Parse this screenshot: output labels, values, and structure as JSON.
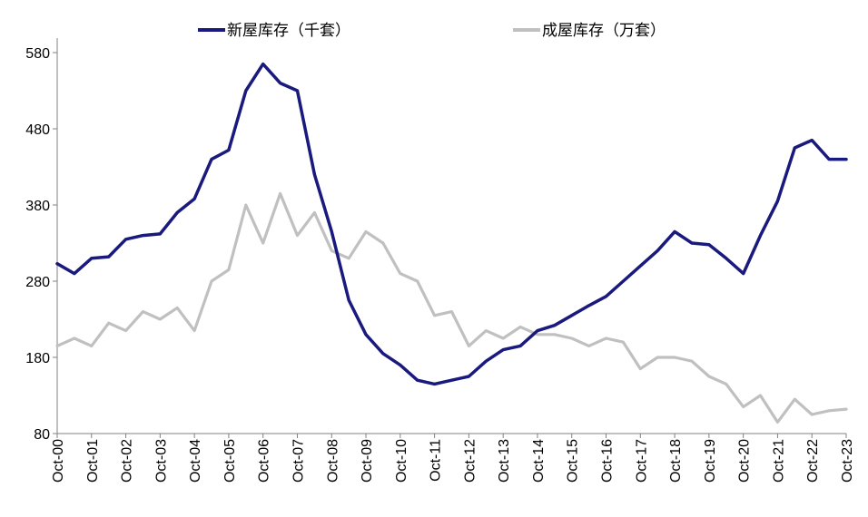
{
  "chart_data": {
    "type": "line",
    "title": "",
    "xlabel": "",
    "ylabel": "",
    "ylim": [
      80,
      580
    ],
    "yticks": [
      80,
      180,
      280,
      380,
      480,
      580
    ],
    "x_start": "Oct-00",
    "x_end": "Oct-23",
    "xticks": [
      "Oct-00",
      "Oct-01",
      "Oct-02",
      "Oct-03",
      "Oct-04",
      "Oct-05",
      "Oct-06",
      "Oct-07",
      "Oct-08",
      "Oct-09",
      "Oct-10",
      "Oct-11",
      "Oct-12",
      "Oct-13",
      "Oct-14",
      "Oct-15",
      "Oct-16",
      "Oct-17",
      "Oct-18",
      "Oct-19",
      "Oct-20",
      "Oct-21",
      "Oct-22",
      "Oct-23"
    ],
    "grid": false,
    "legend_position": "top",
    "series": [
      {
        "name": "新屋库存（千套）",
        "color": "#1a1a7e",
        "x": [
          "Oct-00",
          "Apr-01",
          "Oct-01",
          "Apr-02",
          "Oct-02",
          "Apr-03",
          "Oct-03",
          "Apr-04",
          "Oct-04",
          "Apr-05",
          "Oct-05",
          "Apr-06",
          "Oct-06",
          "Apr-07",
          "Oct-07",
          "Apr-08",
          "Oct-08",
          "Apr-09",
          "Oct-09",
          "Apr-10",
          "Oct-10",
          "Apr-11",
          "Oct-11",
          "Apr-12",
          "Oct-12",
          "Apr-13",
          "Oct-13",
          "Apr-14",
          "Oct-14",
          "Apr-15",
          "Oct-15",
          "Apr-16",
          "Oct-16",
          "Apr-17",
          "Oct-17",
          "Apr-18",
          "Oct-18",
          "Apr-19",
          "Oct-19",
          "Apr-20",
          "Oct-20",
          "Apr-21",
          "Oct-21",
          "Apr-22",
          "Oct-22",
          "Apr-23",
          "Oct-23"
        ],
        "values": [
          303,
          290,
          310,
          312,
          335,
          340,
          342,
          370,
          388,
          440,
          452,
          530,
          565,
          540,
          530,
          420,
          345,
          255,
          210,
          185,
          170,
          150,
          145,
          150,
          155,
          175,
          190,
          195,
          215,
          222,
          235,
          248,
          260,
          280,
          300,
          320,
          345,
          330,
          328,
          310,
          290,
          340,
          385,
          455,
          465,
          440,
          440
        ]
      },
      {
        "name": "成屋库存（万套）",
        "color": "#c0c0c0",
        "x": [
          "Oct-00",
          "Apr-01",
          "Oct-01",
          "Apr-02",
          "Oct-02",
          "Apr-03",
          "Oct-03",
          "Apr-04",
          "Oct-04",
          "Apr-05",
          "Oct-05",
          "Apr-06",
          "Oct-06",
          "Apr-07",
          "Oct-07",
          "Apr-08",
          "Oct-08",
          "Apr-09",
          "Oct-09",
          "Apr-10",
          "Oct-10",
          "Apr-11",
          "Oct-11",
          "Apr-12",
          "Oct-12",
          "Apr-13",
          "Oct-13",
          "Apr-14",
          "Oct-14",
          "Apr-15",
          "Oct-15",
          "Apr-16",
          "Oct-16",
          "Apr-17",
          "Oct-17",
          "Apr-18",
          "Oct-18",
          "Apr-19",
          "Oct-19",
          "Apr-20",
          "Oct-20",
          "Apr-21",
          "Oct-21",
          "Apr-22",
          "Oct-22",
          "Apr-23",
          "Oct-23"
        ],
        "values": [
          195,
          205,
          195,
          225,
          215,
          240,
          230,
          245,
          215,
          280,
          295,
          380,
          330,
          395,
          340,
          370,
          320,
          310,
          345,
          330,
          290,
          280,
          235,
          240,
          195,
          215,
          205,
          220,
          210,
          210,
          205,
          195,
          205,
          200,
          165,
          180,
          180,
          175,
          155,
          145,
          115,
          130,
          95,
          125,
          105,
          110,
          112
        ]
      }
    ]
  }
}
